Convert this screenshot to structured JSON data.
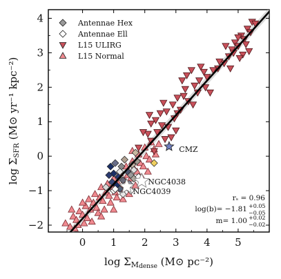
{
  "chart_data": {
    "type": "scatter",
    "xlabel_prefix": "log Σ",
    "xlabel_sub": "M",
    "xlabel_subsub": "dense",
    "xlabel_units": " (M⊙ pc⁻²)",
    "ylabel_prefix": "log Σ",
    "ylabel_sub": "SFR",
    "ylabel_units": " (M⊙ yr⁻¹ kpc⁻²)",
    "xlim": [
      -1.1,
      6.0
    ],
    "ylim": [
      -2.2,
      4.25
    ],
    "xticks": [
      0,
      1,
      2,
      3,
      4,
      5
    ],
    "yticks": [
      -2,
      -1,
      0,
      1,
      2,
      3,
      4
    ],
    "grid": false,
    "legend_position": "top-left",
    "legend": [
      {
        "label": "Antennae Hex",
        "marker": "diamond",
        "color": "#9a9a9a"
      },
      {
        "label": "Antennae Ell",
        "marker": "diamond-open",
        "color": "#ffffff"
      },
      {
        "label": "L15 ULIRG",
        "marker": "triangle-down",
        "color": "#c8505a"
      },
      {
        "label": "L15 Normal",
        "marker": "triangle-up",
        "color": "#f08a90"
      }
    ],
    "fit_line": {
      "slope": 1.0,
      "intercept": -1.81,
      "color": "#000000"
    },
    "annotations": [
      {
        "label": "CMZ",
        "x": 2.78,
        "y": 0.28,
        "marker": "star",
        "color": "#7080c0",
        "text_x": 3.1,
        "text_y": 0.2
      },
      {
        "label": "NGC4038",
        "x": 1.9,
        "y": -0.72,
        "marker": "star-open",
        "color": "#ffffff",
        "text_x": 2.1,
        "text_y": -0.74
      },
      {
        "label": "NGC4039",
        "x": 1.42,
        "y": -0.88,
        "marker": "star-open",
        "color": "#ffffff",
        "text_x": 1.62,
        "text_y": -1.02
      }
    ],
    "stats": {
      "rs": "rₛ = 0.96",
      "logb": "log(b)= −1.81",
      "logb_sup": "+0.05",
      "logb_sub": "−0.05",
      "m": "m= 1.00",
      "m_sup": "+0.02",
      "m_sub": "−0.02"
    },
    "series": [
      {
        "name": "Antennae Hex",
        "marker": "diamond",
        "points": [
          [
            0.9,
            -0.3
          ],
          [
            1.0,
            -0.5
          ],
          [
            1.05,
            -0.2
          ],
          [
            1.15,
            -0.6
          ],
          [
            1.25,
            -0.3
          ],
          [
            1.35,
            -0.1
          ],
          [
            1.45,
            -0.45
          ],
          [
            1.55,
            -0.55
          ],
          [
            1.6,
            -0.25
          ],
          [
            1.7,
            0.1
          ],
          [
            0.95,
            -0.75
          ],
          [
            1.1,
            -0.85
          ],
          [
            1.3,
            -0.7
          ],
          [
            1.5,
            -0.8
          ],
          [
            1.75,
            -0.15
          ],
          [
            0.85,
            -0.55
          ],
          [
            1.2,
            -0.95
          ],
          [
            1.65,
            -0.65
          ]
        ],
        "colors": [
          "#1a2f66",
          "#1a2f66",
          "#6a6f8a",
          "#2a3a70",
          "#8a8a8a",
          "#b0a090",
          "#505870",
          "#9a9a9a",
          "#c0b0a0",
          "#c8b8a0",
          "#3a4a7a",
          "#1a2f66",
          "#6a6a7a",
          "#9090a0",
          "#a09a90",
          "#2a3a70",
          "#50607a",
          "#b0aaa0"
        ]
      },
      {
        "name": "Antennae Ell",
        "marker": "diamond-open",
        "points": [
          [
            0.75,
            -0.9
          ],
          [
            1.0,
            -1.0
          ],
          [
            1.2,
            -0.45
          ],
          [
            1.4,
            -0.9
          ],
          [
            1.55,
            -1.0
          ],
          [
            1.65,
            -0.4
          ],
          [
            1.8,
            -0.6
          ],
          [
            2.3,
            -0.2
          ],
          [
            1.05,
            -0.95
          ],
          [
            1.3,
            -1.1
          ]
        ],
        "colors": [
          "#d8d8d8",
          "#ffffff",
          "#e8e8e8",
          "#f0f0f0",
          "#ffffff",
          "#e0e0e0",
          "#f8f8f8",
          "#f0d060",
          "#ffffff",
          "#e8e8e8"
        ]
      },
      {
        "name": "L15 ULIRG",
        "points": [
          [
            4.55,
            2.7
          ],
          [
            4.7,
            2.9
          ],
          [
            4.8,
            3.1
          ],
          [
            4.9,
            3.3
          ],
          [
            5.0,
            3.2
          ],
          [
            5.1,
            3.5
          ],
          [
            5.2,
            3.4
          ],
          [
            5.3,
            3.7
          ],
          [
            5.4,
            3.6
          ],
          [
            5.45,
            3.9
          ],
          [
            5.55,
            3.85
          ],
          [
            5.0,
            3.45
          ],
          [
            4.85,
            3.0
          ],
          [
            5.25,
            3.25
          ],
          [
            5.35,
            3.05
          ],
          [
            5.15,
            2.95
          ],
          [
            4.35,
            2.55
          ],
          [
            3.2,
            2.2
          ],
          [
            3.5,
            2.5
          ],
          [
            3.8,
            2.6
          ],
          [
            4.0,
            2.3
          ],
          [
            4.2,
            2.5
          ],
          [
            3.6,
            2.05
          ],
          [
            3.3,
            1.95
          ],
          [
            3.95,
            2.0
          ],
          [
            3.05,
            1.7
          ],
          [
            3.4,
            1.6
          ],
          [
            3.7,
            1.85
          ],
          [
            2.9,
            1.5
          ],
          [
            3.15,
            1.35
          ],
          [
            2.7,
            1.3
          ],
          [
            2.95,
            1.1
          ],
          [
            2.5,
            1.25
          ],
          [
            2.35,
            1.05
          ],
          [
            2.55,
            0.9
          ],
          [
            2.2,
            0.95
          ],
          [
            2.75,
            0.85
          ],
          [
            3.0,
            0.75
          ],
          [
            2.4,
            0.7
          ],
          [
            2.1,
            0.65
          ],
          [
            1.95,
            0.7
          ],
          [
            2.65,
            0.5
          ],
          [
            3.05,
            1.25
          ],
          [
            3.25,
            1.75
          ],
          [
            4.1,
            1.85
          ],
          [
            3.9,
            2.45
          ],
          [
            4.4,
            2.75
          ],
          [
            2.2,
            0.45
          ],
          [
            2.6,
            1.55
          ],
          [
            3.55,
            1.5
          ],
          [
            2.15,
            1.2
          ],
          [
            2.85,
            0.55
          ],
          [
            1.8,
            0.25
          ],
          [
            2.3,
            0.15
          ],
          [
            3.75,
            2.2
          ],
          [
            4.6,
            3.2
          ],
          [
            5.05,
            2.85
          ],
          [
            4.75,
            2.55
          ],
          [
            3.35,
            2.35
          ]
        ]
      },
      {
        "name": "L15 Normal",
        "points": [
          [
            -0.55,
            -1.95
          ],
          [
            -0.4,
            -2.05
          ],
          [
            -0.3,
            -1.75
          ],
          [
            -0.2,
            -1.85
          ],
          [
            -0.1,
            -1.6
          ],
          [
            0.0,
            -1.7
          ],
          [
            0.1,
            -1.45
          ],
          [
            0.15,
            -1.8
          ],
          [
            0.25,
            -1.55
          ],
          [
            0.35,
            -1.35
          ],
          [
            0.45,
            -1.5
          ],
          [
            0.55,
            -1.2
          ],
          [
            0.65,
            -1.3
          ],
          [
            0.75,
            -1.05
          ],
          [
            0.85,
            -1.15
          ],
          [
            0.95,
            -0.9
          ],
          [
            1.05,
            -1.05
          ],
          [
            1.15,
            -0.8
          ],
          [
            1.25,
            -0.95
          ],
          [
            1.35,
            -0.7
          ],
          [
            1.45,
            -0.55
          ],
          [
            1.55,
            -0.65
          ],
          [
            1.65,
            -0.35
          ],
          [
            1.75,
            -0.45
          ],
          [
            1.85,
            -0.2
          ],
          [
            1.95,
            -0.3
          ],
          [
            2.05,
            0.0
          ],
          [
            2.15,
            -0.1
          ],
          [
            2.3,
            0.2
          ],
          [
            2.45,
            0.35
          ],
          [
            -0.15,
            -2.0
          ],
          [
            0.05,
            -1.95
          ],
          [
            0.3,
            -1.9
          ],
          [
            0.5,
            -1.65
          ],
          [
            0.7,
            -1.55
          ],
          [
            0.4,
            -1.1
          ],
          [
            0.6,
            -0.9
          ],
          [
            0.8,
            -0.8
          ],
          [
            1.0,
            -0.65
          ],
          [
            1.2,
            -0.5
          ],
          [
            1.4,
            -0.3
          ],
          [
            1.6,
            -0.15
          ],
          [
            1.8,
            0.05
          ],
          [
            2.0,
            0.25
          ],
          [
            2.2,
            0.4
          ],
          [
            -0.35,
            -1.55
          ],
          [
            -0.25,
            -2.1
          ],
          [
            0.2,
            -1.25
          ],
          [
            0.9,
            -1.35
          ],
          [
            1.1,
            -1.2
          ],
          [
            1.3,
            -1.25
          ],
          [
            1.5,
            -1.1
          ],
          [
            1.7,
            -0.85
          ],
          [
            1.9,
            -0.6
          ],
          [
            2.1,
            -0.45
          ],
          [
            0.0,
            -1.35
          ],
          [
            0.6,
            -1.75
          ],
          [
            1.0,
            -1.55
          ],
          [
            1.6,
            0.15
          ],
          [
            2.35,
            0.05
          ]
        ]
      }
    ]
  }
}
